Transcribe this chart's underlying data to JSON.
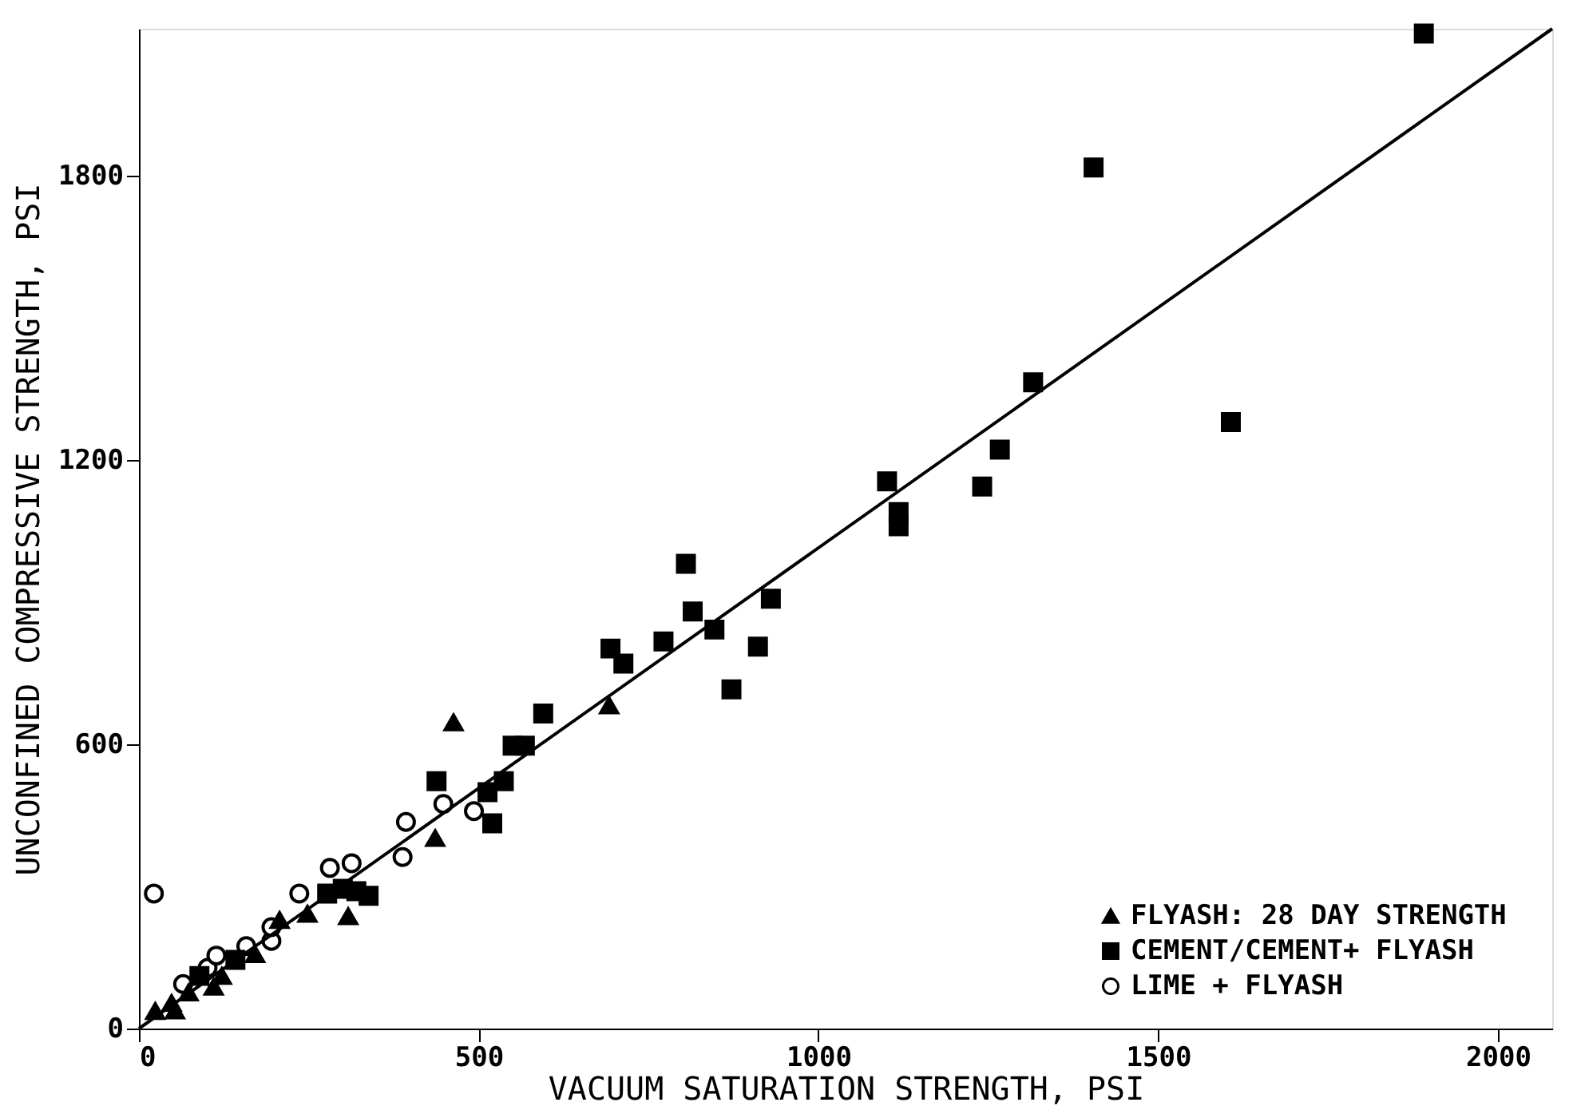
{
  "chart_data": {
    "type": "scatter",
    "xlabel": "VACUUM SATURATION STRENGTH, PSI",
    "ylabel": "UNCONFINED COMPRESSIVE STRENGTH, PSI",
    "xlim": [
      0,
      2080
    ],
    "ylim": [
      0,
      2110
    ],
    "xticks": [
      0,
      500,
      1000,
      1500,
      2000
    ],
    "yticks": [
      0,
      600,
      1200,
      1800
    ],
    "grid": false,
    "legend": "bottom right",
    "series": [
      {
        "name": "FLYASH:  28 DAY STRENGTH",
        "marker": "triangle",
        "color": "#000000",
        "x": [
          24,
          48,
          53,
          73,
          110,
          122,
          171,
          207,
          248,
          308,
          436,
          463,
          692
        ],
        "values": [
          37,
          54,
          38,
          76,
          88,
          111,
          157,
          229,
          242,
          237,
          402,
          646,
          682
        ]
      },
      {
        "name": "CEMENT/CEMENT+ FLYASH",
        "marker": "square",
        "color": "#000000",
        "x": [
          89,
          142,
          277,
          300,
          320,
          338,
          438,
          513,
          520,
          537,
          550,
          568,
          595,
          694,
          713,
          772,
          805,
          815,
          847,
          872,
          911,
          930,
          1101,
          1118,
          1118,
          1241,
          1267,
          1316,
          1405,
          1607,
          1891
        ],
        "values": [
          111,
          145,
          285,
          295,
          290,
          280,
          522,
          499,
          433,
          522,
          597,
          597,
          665,
          802,
          770,
          817,
          981,
          880,
          842,
          716,
          806,
          907,
          1155,
          1090,
          1060,
          1144,
          1222,
          1364,
          1817,
          1280,
          2100
        ]
      },
      {
        "name": "LIME +  FLYASH",
        "marker": "circle",
        "color": "#000000",
        "x": [
          22,
          65,
          101,
          114,
          158,
          195,
          195,
          236,
          281,
          313,
          388,
          393,
          448,
          493
        ],
        "values": [
          285,
          94,
          128,
          154,
          174,
          185,
          214,
          285,
          339,
          349,
          362,
          436,
          474,
          459
        ]
      },
      {
        "type": "line",
        "marker": "none",
        "line_style": "solid",
        "color": "#000000",
        "x": [
          0,
          2080
        ],
        "values": [
          0,
          2110
        ]
      }
    ]
  }
}
